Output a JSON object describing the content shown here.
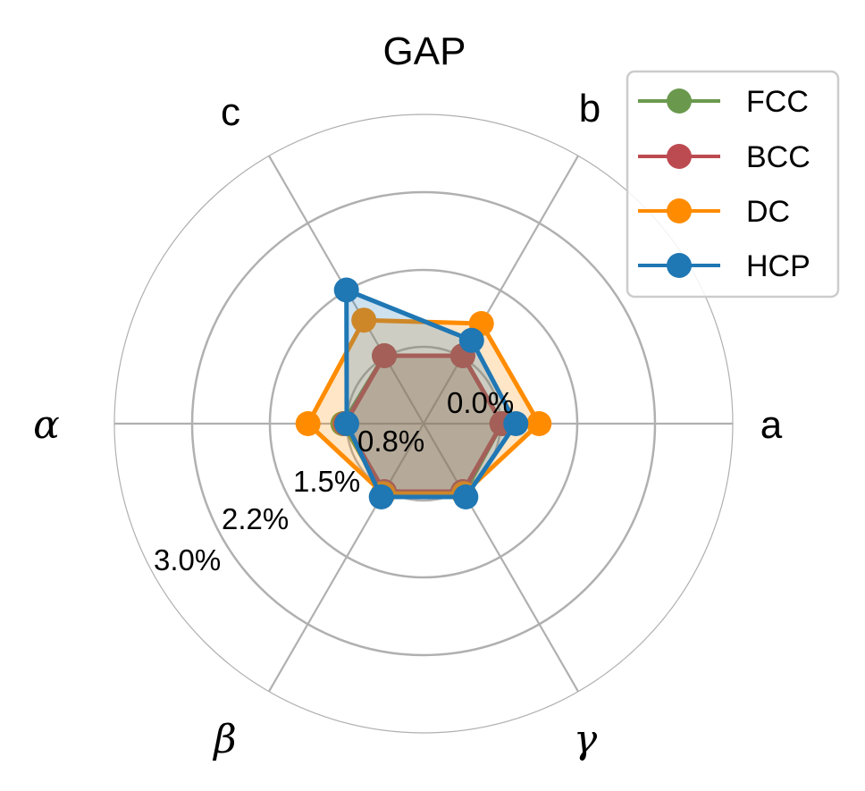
{
  "chart_data": {
    "type": "radar",
    "title": "GAP",
    "axes": [
      "a",
      "b",
      "c",
      "α",
      "β",
      "γ"
    ],
    "radial_ticks": [
      "0.0%",
      "0.8%",
      "1.5%",
      "2.2%",
      "3.0%"
    ],
    "rlim": [
      0,
      3.0
    ],
    "grid": true,
    "legend_placement": "top-right",
    "series": [
      {
        "name": "FCC",
        "color": "#6a994e",
        "values": [
          0.02,
          0.02,
          0.02,
          0.05,
          0.05,
          0.05
        ]
      },
      {
        "name": "BCC",
        "color": "#bc4b51",
        "values": [
          0.02,
          0.02,
          0.02,
          0.02,
          0.02,
          0.02
        ]
      },
      {
        "name": "DC",
        "color": "#ff8c00",
        "values": [
          0.5,
          0.5,
          0.55,
          0.5,
          0.05,
          0.05
        ]
      },
      {
        "name": "HCP",
        "color": "#1f77b4",
        "values": [
          0.2,
          0.25,
          1.0,
          0.0,
          0.1,
          0.1
        ]
      }
    ]
  }
}
